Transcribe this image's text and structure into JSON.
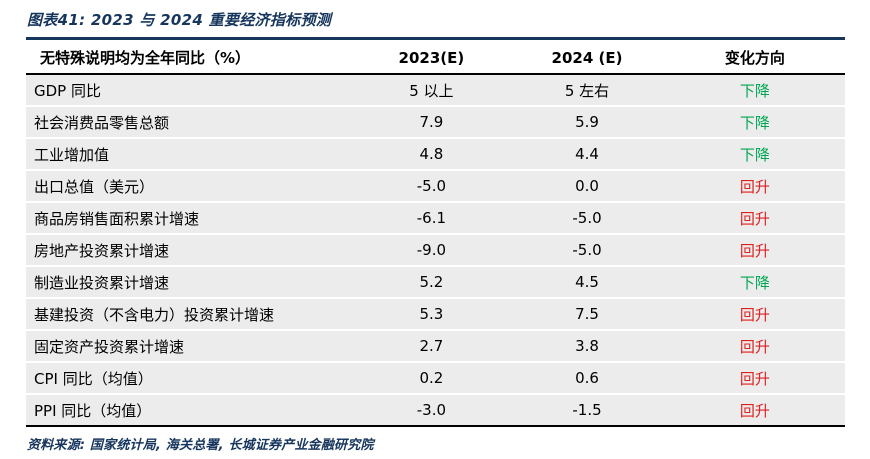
{
  "title": "图表41:  2023 与 2024 重要经济指标预测",
  "footer": "资料来源: 国家统计局, 海关总署, 长城证券产业金融研究院",
  "colors": {
    "accent_navy": "#17365d",
    "direction_down_green": "#00a651",
    "direction_up_red": "#e02020",
    "row_background": "#ececec"
  },
  "table": {
    "headers": [
      "无特殊说明均为全年同比（%）",
      "2023(E)",
      "2024 (E)",
      "变化方向"
    ],
    "rows": [
      {
        "indicator": "GDP 同比",
        "y2023": "5 以上",
        "y2024": "5 左右",
        "direction": "下降",
        "trend": "down"
      },
      {
        "indicator": "社会消费品零售总额",
        "y2023": "7.9",
        "y2024": "5.9",
        "direction": "下降",
        "trend": "down"
      },
      {
        "indicator": "工业增加值",
        "y2023": "4.8",
        "y2024": "4.4",
        "direction": "下降",
        "trend": "down"
      },
      {
        "indicator": "出口总值（美元）",
        "y2023": "-5.0",
        "y2024": "0.0",
        "direction": "回升",
        "trend": "up"
      },
      {
        "indicator": "商品房销售面积累计增速",
        "y2023": "-6.1",
        "y2024": "-5.0",
        "direction": "回升",
        "trend": "up"
      },
      {
        "indicator": "房地产投资累计增速",
        "y2023": "-9.0",
        "y2024": "-5.0",
        "direction": "回升",
        "trend": "up"
      },
      {
        "indicator": "制造业投资累计增速",
        "y2023": "5.2",
        "y2024": "4.5",
        "direction": "下降",
        "trend": "down"
      },
      {
        "indicator": "基建投资（不含电力）投资累计增速",
        "y2023": "5.3",
        "y2024": "7.5",
        "direction": "回升",
        "trend": "up"
      },
      {
        "indicator": "固定资产投资累计增速",
        "y2023": "2.7",
        "y2024": "3.8",
        "direction": "回升",
        "trend": "up"
      },
      {
        "indicator": "CPI 同比（均值）",
        "y2023": "0.2",
        "y2024": "0.6",
        "direction": "回升",
        "trend": "up"
      },
      {
        "indicator": "PPI 同比（均值）",
        "y2023": "-3.0",
        "y2024": "-1.5",
        "direction": "回升",
        "trend": "up"
      }
    ]
  },
  "chart_data": {
    "type": "table",
    "title": "图表41:  2023 与 2024 重要经济指标预测",
    "columns": [
      "无特殊说明均为全年同比（%）",
      "2023(E)",
      "2024 (E)",
      "变化方向"
    ],
    "rows": [
      [
        "GDP 同比",
        "5 以上",
        "5 左右",
        "下降"
      ],
      [
        "社会消费品零售总额",
        "7.9",
        "5.9",
        "下降"
      ],
      [
        "工业增加值",
        "4.8",
        "4.4",
        "下降"
      ],
      [
        "出口总值（美元）",
        "-5.0",
        "0.0",
        "回升"
      ],
      [
        "商品房销售面积累计增速",
        "-6.1",
        "-5.0",
        "回升"
      ],
      [
        "房地产投资累计增速",
        "-9.0",
        "-5.0",
        "回升"
      ],
      [
        "制造业投资累计增速",
        "5.2",
        "4.5",
        "下降"
      ],
      [
        "基建投资（不含电力）投资累计增速",
        "5.3",
        "7.5",
        "回升"
      ],
      [
        "固定资产投资累计增速",
        "2.7",
        "3.8",
        "回升"
      ],
      [
        "CPI 同比（均值）",
        "0.2",
        "0.6",
        "回升"
      ],
      [
        "PPI 同比（均值）",
        "-3.0",
        "-1.5",
        "回升"
      ]
    ]
  }
}
